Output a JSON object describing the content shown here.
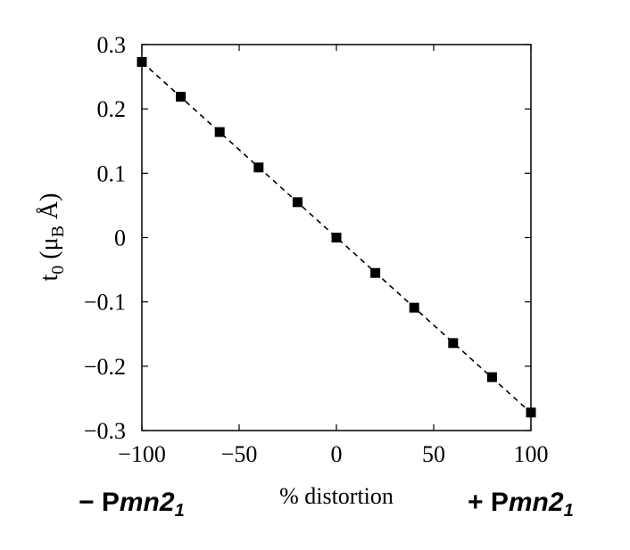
{
  "chart_data": {
    "type": "scatter",
    "x": [
      -100,
      -80,
      -60,
      -40,
      -20,
      0,
      20,
      40,
      60,
      80,
      100
    ],
    "series": [
      {
        "values": [
          0.273,
          0.219,
          0.164,
          0.109,
          0.055,
          0.0,
          -0.055,
          -0.109,
          -0.164,
          -0.217,
          -0.272
        ],
        "marker": "square",
        "color": "#000000",
        "fit_line": "dashed"
      }
    ],
    "xlabel": "% distortion",
    "ylabel": {
      "base": "t",
      "sub": "0",
      "unit_open": " (μ",
      "unit_sub": "B",
      "unit_close": " Å)"
    },
    "xlim": [
      -100,
      100
    ],
    "ylim": [
      -0.3,
      0.3
    ],
    "xticks": [
      -100,
      -50,
      0,
      50,
      100
    ],
    "xtick_labels": [
      "−100",
      "−50",
      "0",
      "50",
      "100"
    ],
    "yticks": [
      0.3,
      0.2,
      0.1,
      0,
      -0.1,
      -0.2,
      -0.3
    ],
    "ytick_labels": [
      "0.3",
      "0.2",
      "0.1",
      "0",
      "−0.1",
      "−0.2",
      "−0.3"
    ],
    "grid": false,
    "annotations": {
      "left": {
        "prefix": "− P",
        "italic": "mn2",
        "sub": "1"
      },
      "right": {
        "prefix": "+ P",
        "italic": "mn2",
        "sub": "1"
      }
    }
  }
}
